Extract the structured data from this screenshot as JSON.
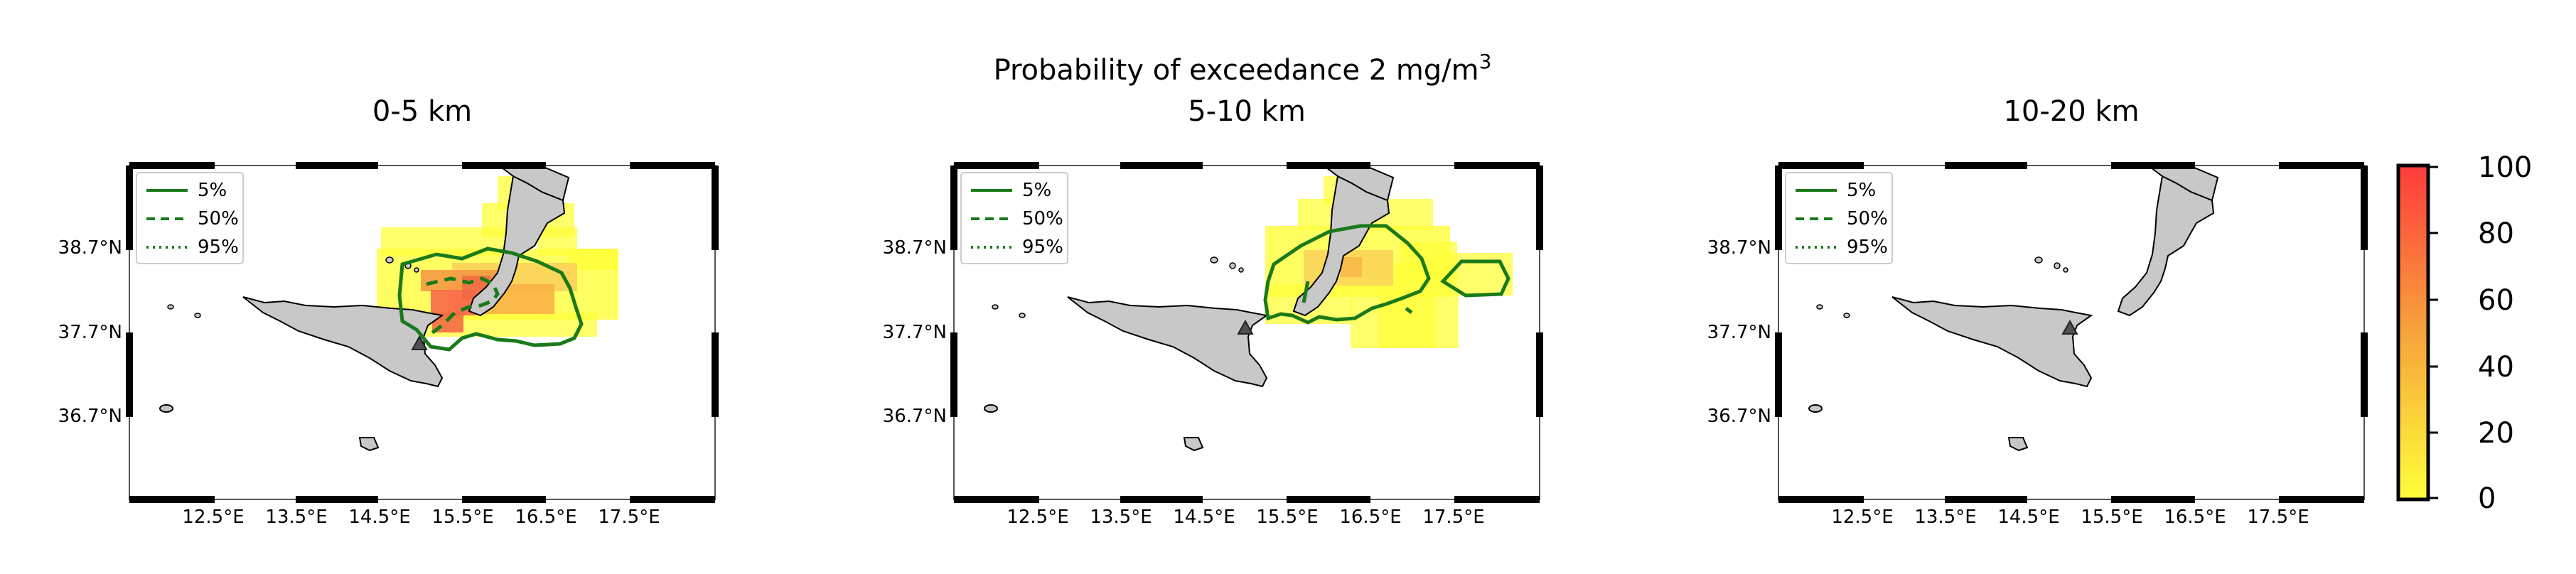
{
  "figure": {
    "suptitle": "Probability of exceedance 2 mg/m",
    "suptitle_sup": "3"
  },
  "panels": [
    {
      "title": "0-5 km"
    },
    {
      "title": "5-10 km"
    },
    {
      "title": "10-20 km"
    }
  ],
  "axes": {
    "lat_labels": [
      "38.7°N",
      "37.7°N",
      "36.7°N"
    ],
    "lon_labels": [
      "12.5°E",
      "13.5°E",
      "14.5°E",
      "15.5°E",
      "16.5°E",
      "17.5°E"
    ]
  },
  "legend": {
    "entries": [
      {
        "label": "5%",
        "style": "solid"
      },
      {
        "label": "50%",
        "style": "dashed"
      },
      {
        "label": "95%",
        "style": "dotted"
      }
    ]
  },
  "colorbar": {
    "ticks": [
      "100",
      "80",
      "60",
      "40",
      "20",
      "0"
    ],
    "colors": {
      "high": "#ff3b3b",
      "mid": "#f7a33b",
      "low": "#ffff3b"
    }
  },
  "colors": {
    "land": "#c8c8c8",
    "contour": "#1a7a1a",
    "volcano": "#505050",
    "frame": "#000000"
  }
}
